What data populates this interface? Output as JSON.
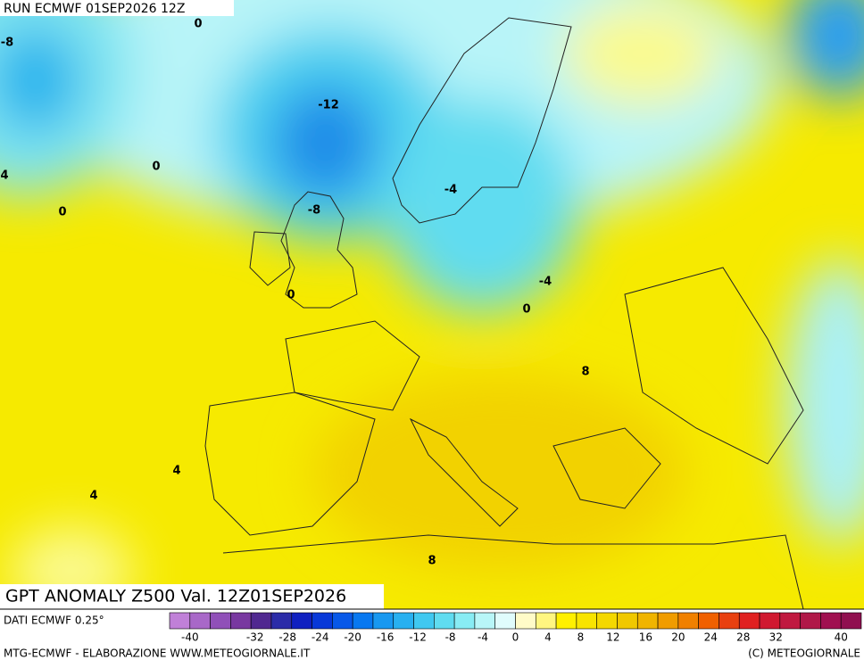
{
  "header": {
    "run": "RUN ECMWF 01SEP2026 12Z"
  },
  "contour_labels": [
    "0",
    "-8",
    "-12",
    "4",
    "0",
    "0",
    "-8",
    "-4",
    "-4",
    "0",
    "0",
    "8",
    "4",
    "4",
    "8"
  ],
  "title": "GPT ANOMALY Z500 Val. 12Z01SEP2026",
  "source": "DATI ECMWF 0.25°",
  "colorbar": {
    "lim": [
      -42.5,
      42.5
    ],
    "ticks": [
      -40,
      -32,
      -28,
      -24,
      -20,
      -16,
      -12,
      -8,
      -4,
      0,
      4,
      8,
      12,
      16,
      20,
      24,
      28,
      32,
      40
    ],
    "colors": [
      "#c080d8",
      "#a868c8",
      "#9050b8",
      "#7838a0",
      "#502890",
      "#2c2ca8",
      "#1020c0",
      "#0838d8",
      "#0858e8",
      "#0878f0",
      "#1898f0",
      "#28b0f0",
      "#40c8f0",
      "#60dcf0",
      "#88ecf4",
      "#b8f6f8",
      "#e0fcfc",
      "#fffbc8",
      "#fff680",
      "#fff000",
      "#f8e400",
      "#f4d800",
      "#f0c800",
      "#f0b400",
      "#f09c00",
      "#f08000",
      "#f06000",
      "#e84010",
      "#e02020",
      "#d01830",
      "#c01840",
      "#b01848",
      "#a01050",
      "#901050"
    ]
  },
  "footer": {
    "left": "MTG-ECMWF - ELABORAZIONE WWW.METEOGIORNALE.IT",
    "right": "(C) METEOGIORNALE"
  }
}
